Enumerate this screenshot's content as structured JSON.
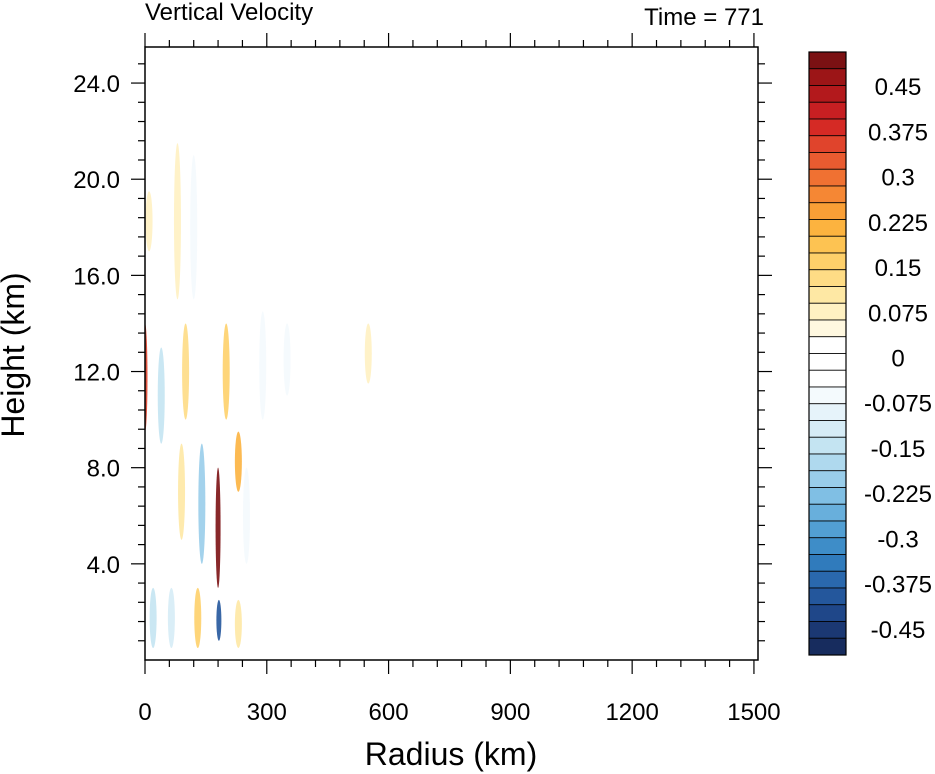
{
  "chart_data": {
    "type": "heatmap",
    "title": "Vertical Velocity",
    "subtitle": "Time = 771",
    "xlabel": "Radius (km)",
    "ylabel": "Height (km)",
    "xlim": [
      0,
      1510
    ],
    "ylim": [
      0,
      25.5
    ],
    "x_ticks": [
      "0",
      "300",
      "600",
      "900",
      "1200",
      "1500"
    ],
    "x_tick_values": [
      0,
      300,
      600,
      900,
      1200,
      1500
    ],
    "y_ticks": [
      "4.0",
      "8.0",
      "12.0",
      "16.0",
      "20.0",
      "24.0"
    ],
    "y_tick_values": [
      4,
      8,
      12,
      16,
      20,
      24
    ],
    "colorbar": {
      "labels": [
        "0.45",
        "0.375",
        "0.3",
        "0.225",
        "0.15",
        "0.075",
        "0",
        "-0.075",
        "-0.15",
        "-0.225",
        "-0.3",
        "-0.375",
        "-0.45"
      ],
      "label_values": [
        0.45,
        0.375,
        0.3,
        0.225,
        0.15,
        0.075,
        0,
        -0.075,
        -0.15,
        -0.225,
        -0.3,
        -0.375,
        -0.45
      ],
      "colors_top_to_bottom": [
        "#7b1113",
        "#9c1517",
        "#b3191c",
        "#c71f22",
        "#d52a25",
        "#e0442c",
        "#e95b30",
        "#f07132",
        "#f58734",
        "#f99f36",
        "#fcb33f",
        "#fdc352",
        "#fed06a",
        "#fedc85",
        "#fee8a4",
        "#fff1c2",
        "#fff8e0",
        "#ffffff",
        "#ffffff",
        "#ffffff",
        "#f4fafd",
        "#e6f3fa",
        "#d6ecf6",
        "#c4e4f2",
        "#afd9ee",
        "#99cdea",
        "#80bfe4",
        "#68afdc",
        "#529fd3",
        "#3e8dc8",
        "#307bbc",
        "#2a68ad",
        "#24579c",
        "#1f4789",
        "#1b3873",
        "#172c5e"
      ]
    },
    "features": [
      {
        "x": 0,
        "y0": 9.5,
        "y1": 14,
        "w": 0.35
      },
      {
        "x": 180,
        "y0": 3,
        "y1": 8,
        "w": 0.5
      },
      {
        "x": 182,
        "y0": 0.8,
        "y1": 2.5,
        "w": -0.4
      },
      {
        "x": 230,
        "y0": 7,
        "y1": 9.5,
        "w": 0.2
      },
      {
        "x": 40,
        "y0": 9,
        "y1": 13,
        "w": -0.15
      },
      {
        "x": 100,
        "y0": 10,
        "y1": 14,
        "w": 0.12
      },
      {
        "x": 140,
        "y0": 4,
        "y1": 9,
        "w": -0.2
      },
      {
        "x": 20,
        "y0": 0.5,
        "y1": 3,
        "w": -0.15
      },
      {
        "x": 65,
        "y0": 0.5,
        "y1": 3,
        "w": -0.12
      },
      {
        "x": 130,
        "y0": 0.5,
        "y1": 3,
        "w": 0.15
      },
      {
        "x": 230,
        "y0": 0.5,
        "y1": 2.5,
        "w": 0.1
      },
      {
        "x": 290,
        "y0": 10,
        "y1": 14.5,
        "w": -0.08
      },
      {
        "x": 350,
        "y0": 11,
        "y1": 14,
        "w": -0.06
      },
      {
        "x": 550,
        "y0": 11.5,
        "y1": 14,
        "w": 0.06
      },
      {
        "x": 80,
        "y0": 15,
        "y1": 21.5,
        "w": 0.08
      },
      {
        "x": 120,
        "y0": 15,
        "y1": 21,
        "w": -0.06
      },
      {
        "x": 10,
        "y0": 17,
        "y1": 19.5,
        "w": 0.08
      },
      {
        "x": 200,
        "y0": 10,
        "y1": 14,
        "w": 0.15
      },
      {
        "x": 90,
        "y0": 5,
        "y1": 9,
        "w": 0.1
      },
      {
        "x": 250,
        "y0": 4,
        "y1": 8,
        "w": -0.08
      }
    ]
  }
}
